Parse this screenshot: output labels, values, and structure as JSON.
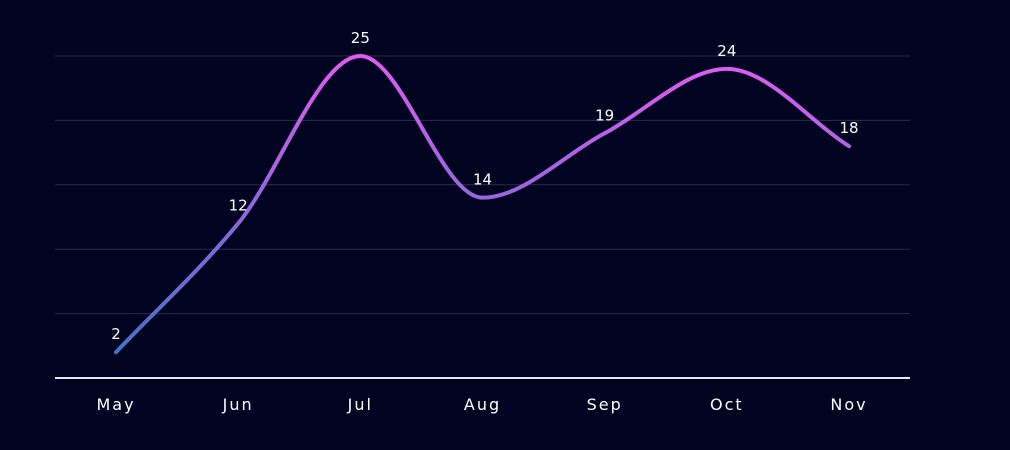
{
  "chart_data": {
    "type": "line",
    "categories": [
      "May",
      "Jun",
      "Jul",
      "Aug",
      "Sep",
      "Oct",
      "Nov"
    ],
    "series": [
      {
        "values": [
          2,
          12,
          25,
          14,
          19,
          24,
          18
        ]
      }
    ],
    "title": "",
    "xlabel": "",
    "ylabel": "",
    "ylim": [
      0,
      25
    ],
    "grid": true,
    "smooth": true,
    "show_data_labels": true,
    "colors": {
      "background": "#010420",
      "line_gradient_start": "#3f73c6",
      "line_gradient_end": "#e15bf0",
      "grid": "#2a2d4a",
      "axis": "#e9e9f2",
      "text": "#ffffff"
    }
  }
}
